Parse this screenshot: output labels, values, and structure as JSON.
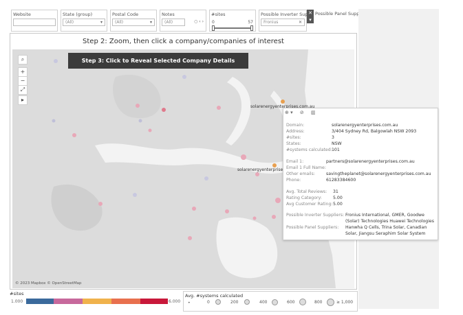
{
  "filters": [
    {
      "label": "Website",
      "value": ""
    },
    {
      "label": "State (group)",
      "value": "(All)"
    },
    {
      "label": "Postal Code",
      "value": "(All)"
    },
    {
      "label": "Notes",
      "value": "(All)"
    },
    {
      "label": "#sites",
      "min": "0",
      "max": "57",
      "range_fraction": [
        0.0,
        1.0
      ]
    },
    {
      "label": "Possible Inverter Sup...",
      "value": "Fronius"
    },
    {
      "label": "Possible Panel Suppli...",
      "value": ""
    }
  ],
  "map": {
    "title": "Step 2: Zoom, then click a company/companies of interest",
    "step3_button": "Step 3: Click to Reveal Selected Company Details",
    "copyright": "© 2023 Mapbox © OpenStreetMap",
    "controls": [
      "search-icon",
      "zoom-in-icon",
      "zoom-out-icon",
      "reset-icon",
      "play-icon"
    ],
    "labels": [
      "solarenergyenterprises.com.au",
      "solarenergyenterprise"
    ]
  },
  "tooltip": {
    "toolbar": [
      "⊕ ▾",
      "⊘",
      "▥"
    ],
    "rows": [
      {
        "k": "Domain:",
        "v": "solarenergyenterprises.com.au"
      },
      {
        "k": "Address:",
        "v": "3/404 Sydney Rd, Balgowlah NSW 2093"
      },
      {
        "k": "#sites:",
        "v": "3"
      },
      {
        "k": "States:",
        "v": "NSW"
      },
      {
        "k": "#systems calculated:",
        "v": "101"
      },
      {
        "k": "Email 1:",
        "v": "partners@solarenergyenterprises.com.au"
      },
      {
        "k": "Email 1 Full Name:",
        "v": ""
      },
      {
        "k": "Other emails:",
        "v": "savingtheplanet@solarenergyenterprises.com.au"
      },
      {
        "k": "Phone:",
        "v": "61283384600"
      },
      {
        "k": "Avg. Total Reviews:",
        "v": "31"
      },
      {
        "k": "Rating Category:",
        "v": "5.00"
      },
      {
        "k": "Avg Customer Rating:",
        "v": "5.00"
      },
      {
        "k": "Possible Inverter Suppliers:",
        "v": "Fronius International, GMER, Goodwe"
      },
      {
        "k": "",
        "v": "(Solar) Technologies Huawei Technologies"
      },
      {
        "k": "Possible Panel Suppliers:",
        "v": "Hanwha Q Cells, Trina Solar, Canadian"
      },
      {
        "k": "",
        "v": "Solar, Jiangsu Seraphim Solar System"
      }
    ]
  },
  "legend_sites": {
    "title": "#sites",
    "min": "1.000",
    "max": "6.000",
    "colors": [
      "#3b6a9c",
      "#c7699c",
      "#f0b24c",
      "#e8704e",
      "#c8183a"
    ]
  },
  "legend_systems": {
    "title": "Avg. #systems calculated",
    "items": [
      "0",
      "200",
      "400",
      "600",
      "800",
      "≥ 1,000"
    ]
  },
  "colors": {
    "map_land": "#dcdcdc",
    "map_water": "#f3f3f3",
    "accent_dot": "#e07a8c"
  }
}
